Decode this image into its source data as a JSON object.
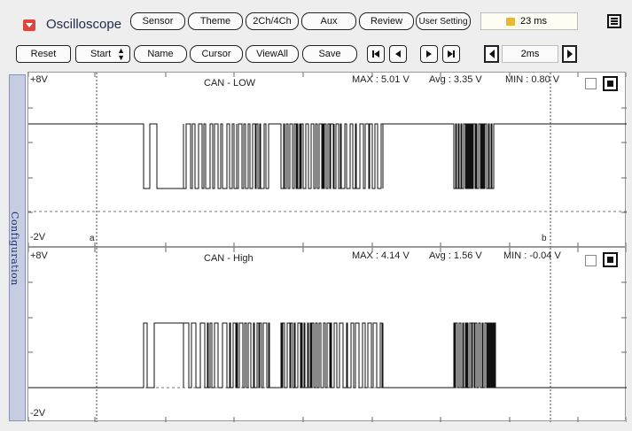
{
  "app": {
    "title": "Oscilloscope"
  },
  "top_buttons": [
    "Sensor",
    "Theme",
    "2Ch/4Ch",
    "Aux",
    "Review",
    "User Setting"
  ],
  "time_readout": "23 ms",
  "second_row": {
    "reset": "Reset",
    "start": "Start",
    "name": "Name",
    "cursor": "Cursor",
    "viewall": "ViewAll",
    "save": "Save"
  },
  "timebase": "2ms",
  "sidebar": {
    "label": "Configuration"
  },
  "channels": [
    {
      "name": "CAN - LOW",
      "vmax_label": "+8V",
      "vmin_label": "-2V",
      "max": "MAX : 5.01 V",
      "avg": "Avg : 3.35 V",
      "min": "MIN : 0.80 V"
    },
    {
      "name": "CAN - High",
      "vmax_label": "+8V",
      "vmin_label": "-2V",
      "max": "MAX : 4.14 V",
      "avg": "Avg : 1.56 V",
      "min": "MIN : -0.04 V"
    }
  ],
  "cursors": {
    "a": "a",
    "b": "b"
  },
  "colors": {
    "accent": "#d9463f",
    "title": "#1f2a4a",
    "trace": "#111111",
    "sidebar": "#c7cde1"
  },
  "icons": {
    "logo": "dropdown-logo-icon",
    "menu": "hamburger-menu-icon",
    "first": "skip-first-icon",
    "prev": "step-back-icon",
    "next": "step-forward-icon",
    "last": "skip-last-icon"
  }
}
